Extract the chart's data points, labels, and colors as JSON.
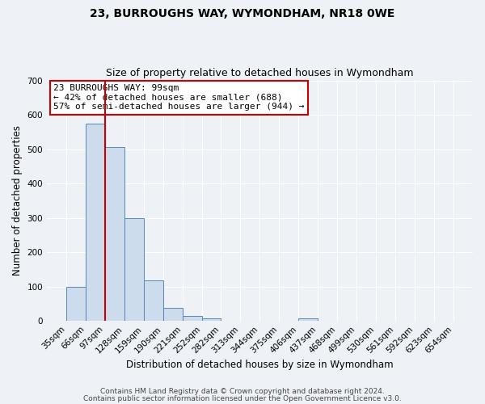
{
  "title": "23, BURROUGHS WAY, WYMONDHAM, NR18 0WE",
  "subtitle": "Size of property relative to detached houses in Wymondham",
  "xlabel": "Distribution of detached houses by size in Wymondham",
  "ylabel": "Number of detached properties",
  "bins": [
    35,
    66,
    97,
    128,
    159,
    190,
    221,
    252,
    282,
    313,
    344,
    375,
    406,
    437,
    468,
    499,
    530,
    561,
    592,
    623,
    654
  ],
  "counts": [
    100,
    575,
    505,
    300,
    118,
    37,
    14,
    8,
    0,
    0,
    0,
    0,
    8,
    0,
    0,
    0,
    0,
    0,
    0,
    0
  ],
  "bar_color": "#ccdcec",
  "bar_edge_color": "#5588bb",
  "vline_x": 97,
  "vline_color": "#cc0000",
  "ylim": [
    0,
    700
  ],
  "yticks": [
    0,
    100,
    200,
    300,
    400,
    500,
    600,
    700
  ],
  "annotation_title": "23 BURROUGHS WAY: 99sqm",
  "annotation_line1": "← 42% of detached houses are smaller (688)",
  "annotation_line2": "57% of semi-detached houses are larger (944) →",
  "annotation_box_color": "#ffffff",
  "annotation_box_edge_color": "#cc0000",
  "footer_line1": "Contains HM Land Registry data © Crown copyright and database right 2024.",
  "footer_line2": "Contains public sector information licensed under the Open Government Licence v3.0.",
  "background_color": "#eef2f7",
  "grid_color": "#ffffff",
  "title_fontsize": 10,
  "subtitle_fontsize": 9,
  "axis_label_fontsize": 8.5,
  "tick_fontsize": 7.5,
  "annotation_fontsize": 8,
  "footer_fontsize": 6.5
}
